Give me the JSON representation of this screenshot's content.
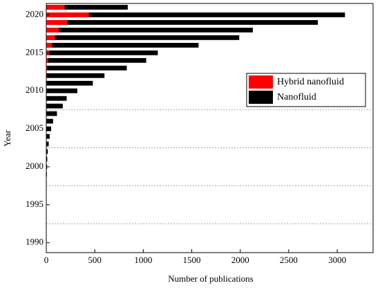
{
  "chart_data": {
    "type": "bar",
    "orientation": "horizontal",
    "xlabel": "Number of publications",
    "ylabel": "Year",
    "y": [
      2021,
      2020,
      2019,
      2018,
      2017,
      2016,
      2015,
      2014,
      2013,
      2012,
      2011,
      2010,
      2009,
      2008,
      2007,
      2006,
      2005,
      2004,
      2003,
      2002,
      2001,
      2000,
      1999,
      1998,
      1997,
      1996,
      1995,
      1994,
      1993,
      1992,
      1991,
      1990
    ],
    "series": [
      {
        "name": "Hybrid nanofluid",
        "color": "#ff0000",
        "values": [
          190,
          440,
          220,
          130,
          90,
          60,
          30,
          20,
          10,
          5,
          3,
          2,
          1,
          1,
          0,
          0,
          0,
          0,
          0,
          0,
          0,
          0,
          0,
          0,
          0,
          0,
          0,
          0,
          0,
          0,
          0,
          0
        ]
      },
      {
        "name": "Nanofluid",
        "color": "#000000",
        "values": [
          840,
          3080,
          2800,
          2130,
          1990,
          1570,
          1150,
          1030,
          830,
          600,
          480,
          320,
          210,
          170,
          110,
          70,
          50,
          35,
          25,
          15,
          10,
          8,
          6,
          4,
          3,
          2,
          1,
          0,
          0,
          0,
          0,
          0
        ]
      }
    ],
    "xlim": [
      0,
      3370
    ],
    "xticks": [
      0,
      500,
      1000,
      1500,
      2000,
      2500,
      3000
    ],
    "ylim": [
      1988.7,
      2021.5
    ],
    "yticks": [
      1990,
      1995,
      2000,
      2005,
      2010,
      2015,
      2020
    ],
    "y_gridlines": [
      1992.5,
      1997.5,
      2002.5,
      2007.5
    ],
    "legend": "center-right"
  }
}
